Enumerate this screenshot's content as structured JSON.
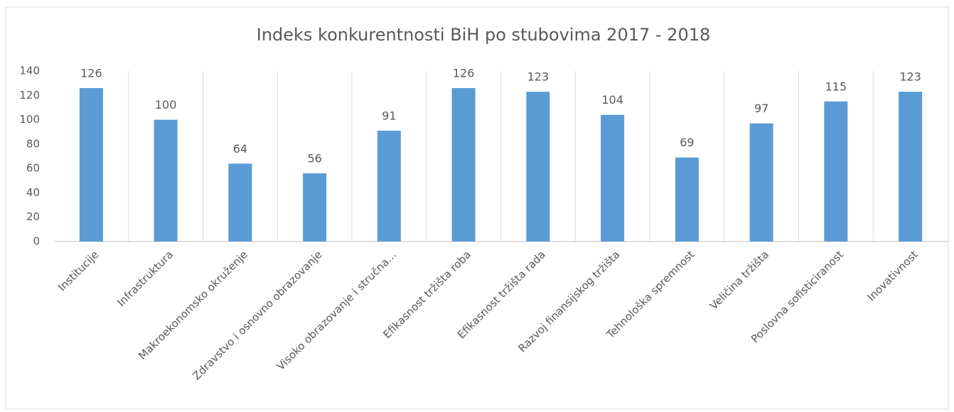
{
  "chart_data": {
    "type": "bar",
    "title": "Indeks konkurentnosti BiH po stubovima 2017 - 2018",
    "categories": [
      "Institucije",
      "Infrastruktura",
      "Makroekonomsko okruženje",
      "Zdravstvo i osnovno obrazovanje",
      "Visoko obrazovanje i stručna…",
      "Efikasnost tržišta roba",
      "Efikasnost tržišta rada",
      "Razvoj finansijskog tržišta",
      "Tehnološka spremnost",
      "Veličina tržišta",
      "Poslovna sofisticiranost",
      "Inovativnost"
    ],
    "values": [
      126,
      100,
      64,
      56,
      91,
      126,
      123,
      104,
      69,
      97,
      115,
      123
    ],
    "color": "#5b9bd5",
    "ylim": [
      0,
      140
    ],
    "yticks": [
      0,
      20,
      40,
      60,
      80,
      100,
      120,
      140
    ],
    "grid": true
  }
}
